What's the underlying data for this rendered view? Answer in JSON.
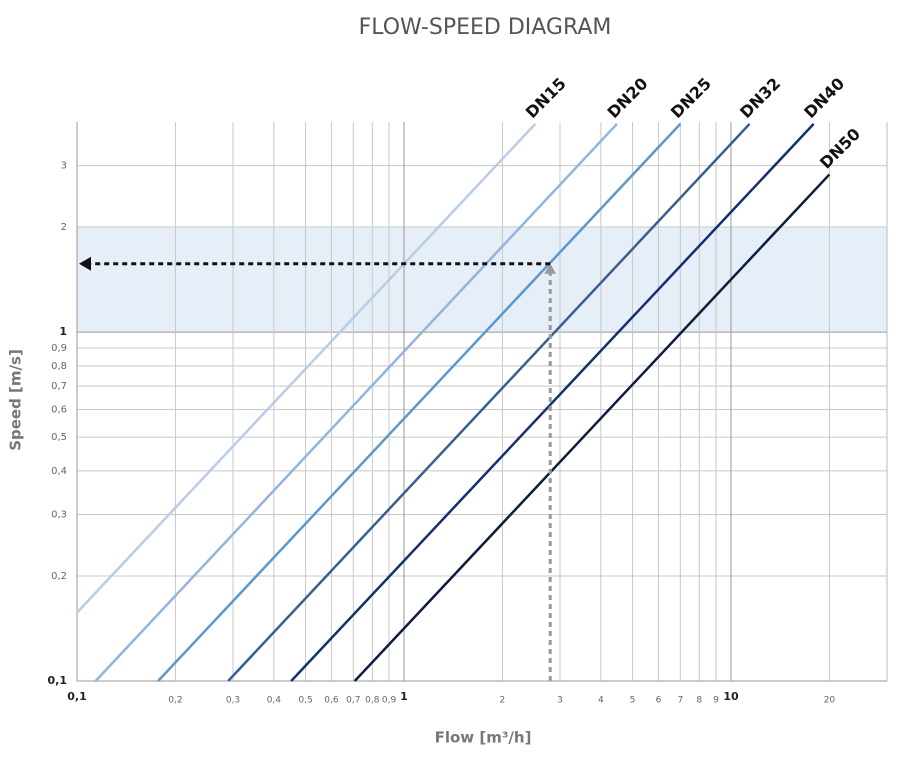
{
  "chart_data": {
    "type": "line",
    "title": "FLOW-SPEED DIAGRAM",
    "x_label": "Flow [m³/h]",
    "y_label": "Speed [m/s]",
    "log_x": true,
    "log_y": true,
    "grid": true,
    "xlim": [
      0.1,
      30
    ],
    "ylim": [
      0.1,
      4
    ],
    "xticks": [
      {
        "value": 0.1,
        "label": "0,1"
      },
      {
        "value": 0.2,
        "label": "0,2"
      },
      {
        "value": 0.3,
        "label": "0,3"
      },
      {
        "value": 0.4,
        "label": "0,4"
      },
      {
        "value": 0.5,
        "label": "0,5"
      },
      {
        "value": 0.6,
        "label": "0,6"
      },
      {
        "value": 0.7,
        "label": "0,7"
      },
      {
        "value": 0.8,
        "label": "0,8"
      },
      {
        "value": 0.9,
        "label": "0,9"
      },
      1,
      2,
      3,
      4,
      5,
      6,
      7,
      8,
      9,
      10,
      20
    ],
    "yticks": [
      {
        "value": 0.1,
        "label": "0,1"
      },
      {
        "value": 0.2,
        "label": "0,2"
      },
      {
        "value": 0.3,
        "label": "0,3"
      },
      {
        "value": 0.4,
        "label": "0,4"
      },
      {
        "value": 0.5,
        "label": "0,5"
      },
      {
        "value": 0.6,
        "label": "0,6"
      },
      {
        "value": 0.7,
        "label": "0,7"
      },
      {
        "value": 0.8,
        "label": "0,8"
      },
      {
        "value": 0.9,
        "label": "0,9"
      },
      1,
      2,
      3
    ],
    "band": [
      1,
      2
    ],
    "band_color": "#e6eef7",
    "marker": {
      "x": 2.8,
      "y": 1.57
    },
    "series": [
      {
        "name": "DN15",
        "color": "#b8cde6",
        "x": [
          0.1,
          2.52
        ],
        "values": [
          0.157,
          3.95
        ]
      },
      {
        "name": "DN20",
        "color": "#93b4dc",
        "x": [
          0.114,
          4.48
        ],
        "values": [
          0.1,
          3.95
        ]
      },
      {
        "name": "DN25",
        "color": "#5a98cf",
        "x": [
          0.177,
          7.0
        ],
        "values": [
          0.1,
          3.95
        ]
      },
      {
        "name": "DN32",
        "color": "#3a5f8f",
        "x": [
          0.29,
          11.4
        ],
        "values": [
          0.1,
          3.95
        ]
      },
      {
        "name": "DN40",
        "color": "#15306e",
        "x": [
          0.452,
          17.9
        ],
        "values": [
          0.1,
          3.95
        ]
      },
      {
        "name": "DN50",
        "color": "#0d1e3d",
        "x": [
          0.707,
          20
        ],
        "values": [
          0.1,
          2.83
        ]
      }
    ]
  }
}
